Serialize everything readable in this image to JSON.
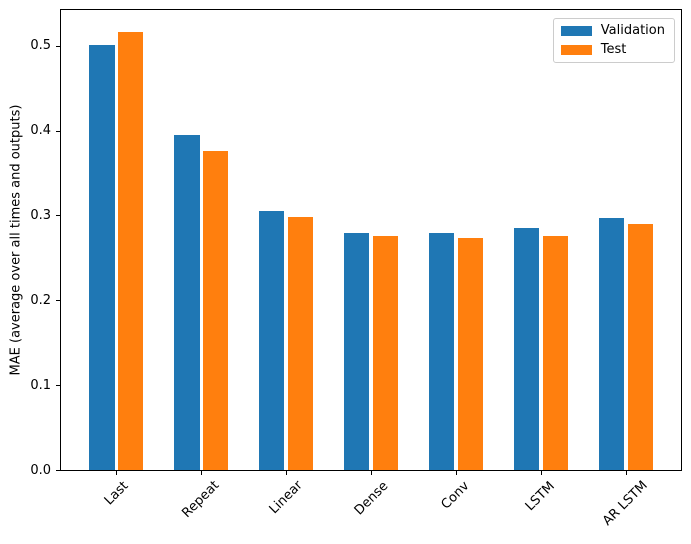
{
  "figure": {
    "ylabel": "MAE (average over all times and outputs)"
  },
  "chart_data": {
    "type": "bar",
    "title": "",
    "xlabel": "",
    "ylabel": "MAE (average over all times and outputs)",
    "categories": [
      "Last",
      "Repeat",
      "Linear",
      "Dense",
      "Conv",
      "LSTM",
      "AR LSTM"
    ],
    "series": [
      {
        "name": "Validation",
        "color": "#1f77b4",
        "values": [
          0.501,
          0.395,
          0.305,
          0.279,
          0.279,
          0.285,
          0.297
        ]
      },
      {
        "name": "Test",
        "color": "#ff7f0e",
        "values": [
          0.516,
          0.376,
          0.298,
          0.276,
          0.273,
          0.276,
          0.29
        ]
      }
    ],
    "ylim": [
      0,
      0.542
    ],
    "yticks": [
      0.0,
      0.1,
      0.2,
      0.3,
      0.4,
      0.5
    ],
    "xlim": [
      -0.65,
      6.65
    ],
    "bar_width": 0.3,
    "group_offsets": [
      -0.17,
      0.17
    ],
    "xtick_rotation": 45,
    "grid": false,
    "legend_position": "upper right"
  }
}
